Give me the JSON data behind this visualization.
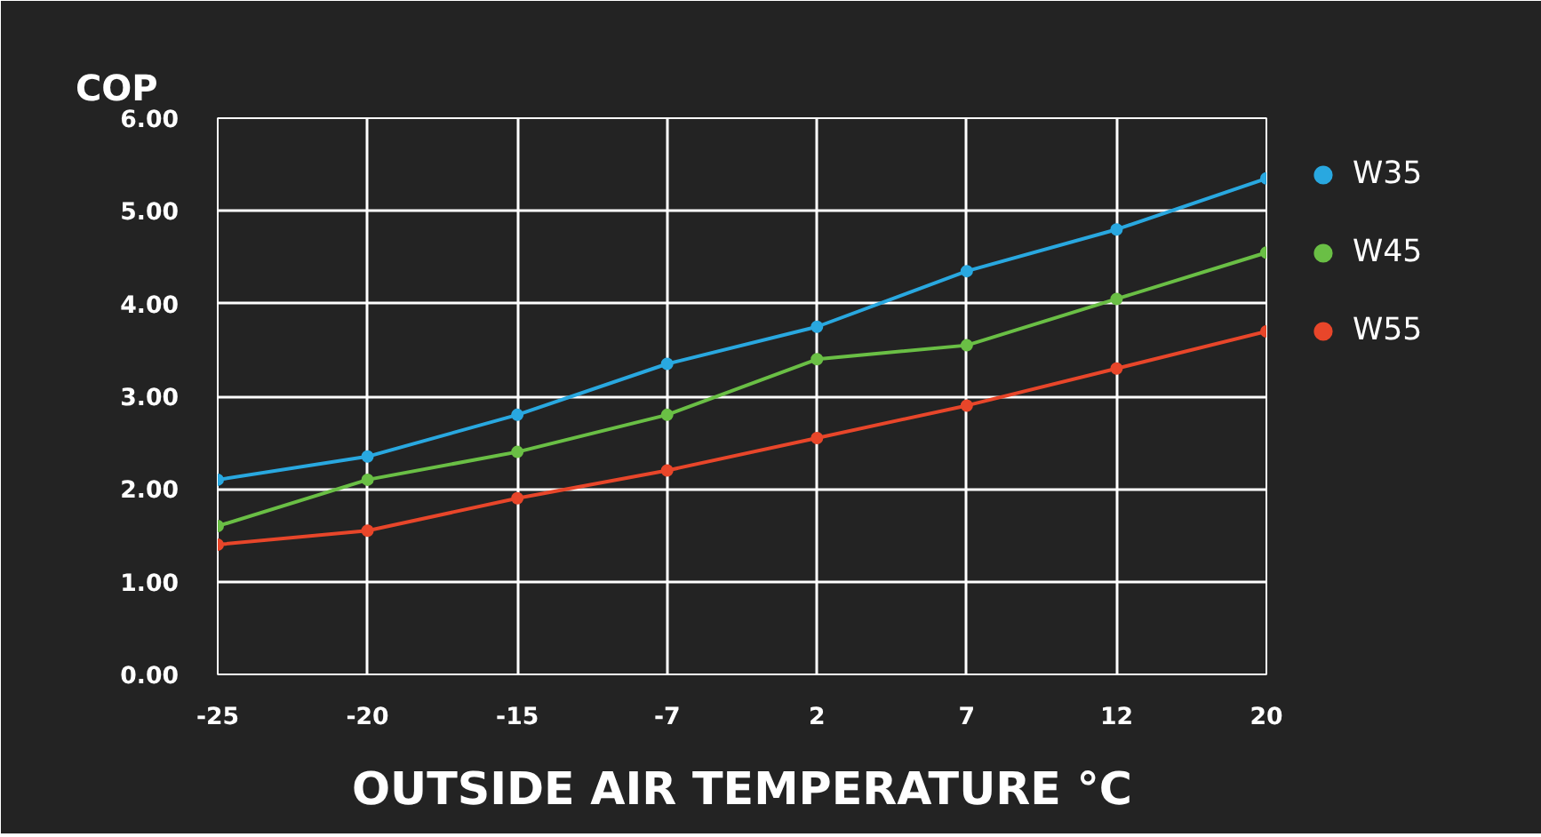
{
  "chart_data": {
    "type": "line",
    "title": "COP",
    "xlabel": "OUTSIDE AIR TEMPERATURE °C",
    "categories": [
      "-25",
      "-20",
      "-15",
      "-7",
      "2",
      "7",
      "12",
      "20"
    ],
    "ylim": [
      0,
      6
    ],
    "yticks": [
      {
        "value": 0,
        "label": "0.00"
      },
      {
        "value": 1,
        "label": "1.00"
      },
      {
        "value": 2,
        "label": "2.00"
      },
      {
        "value": 3,
        "label": "3.00"
      },
      {
        "value": 4,
        "label": "4.00"
      },
      {
        "value": 5,
        "label": "5.00"
      },
      {
        "value": 6,
        "label": "6.00"
      }
    ],
    "grid": true,
    "legend": "right",
    "marker": "circle",
    "line_style": "solid",
    "series": [
      {
        "name": "W35",
        "color": "#29a8e0",
        "values": [
          2.1,
          2.35,
          2.8,
          3.35,
          3.75,
          4.35,
          4.8,
          5.35
        ]
      },
      {
        "name": "W45",
        "color": "#6abf45",
        "values": [
          1.6,
          2.1,
          2.4,
          2.8,
          3.4,
          3.55,
          4.05,
          4.55
        ]
      },
      {
        "name": "W55",
        "color": "#e8462a",
        "values": [
          1.4,
          1.55,
          1.9,
          2.2,
          2.55,
          2.9,
          3.3,
          3.7
        ]
      }
    ]
  }
}
